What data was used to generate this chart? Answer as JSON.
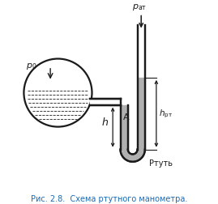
{
  "title": "Рис. 2.8.  Схема ртутного манометра.",
  "title_color": "#1a6bb5",
  "bg_color": "#ffffff",
  "fig_width": 2.69,
  "fig_height": 2.53,
  "dpi": 100,
  "label_p0": "$p_0$",
  "label_pat": "$p_{\\mathrm{ат}}$",
  "label_h": "h",
  "label_hrt": "$h_{\\mathrm{рт}}$",
  "label_A": "A",
  "label_mercury": "Ртуть",
  "line_color": "#1a1a1a",
  "mercury_fill": "#b0b0b0"
}
